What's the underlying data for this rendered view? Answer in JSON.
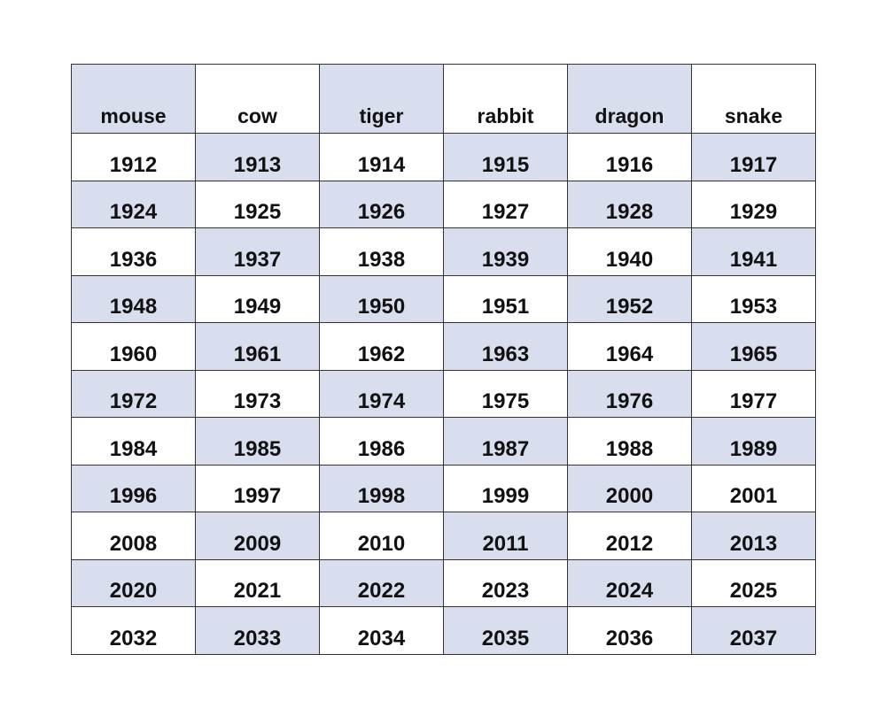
{
  "table": {
    "headers": [
      "mouse",
      "cow",
      "tiger",
      "rabbit",
      "dragon",
      "snake"
    ],
    "rows": [
      [
        "1912",
        "1913",
        "1914",
        "1915",
        "1916",
        "1917"
      ],
      [
        "1924",
        "1925",
        "1926",
        "1927",
        "1928",
        "1929"
      ],
      [
        "1936",
        "1937",
        "1938",
        "1939",
        "1940",
        "1941"
      ],
      [
        "1948",
        "1949",
        "1950",
        "1951",
        "1952",
        "1953"
      ],
      [
        "1960",
        "1961",
        "1962",
        "1963",
        "1964",
        "1965"
      ],
      [
        "1972",
        "1973",
        "1974",
        "1975",
        "1976",
        "1977"
      ],
      [
        "1984",
        "1985",
        "1986",
        "1987",
        "1988",
        "1989"
      ],
      [
        "1996",
        "1997",
        "1998",
        "1999",
        "2000",
        "2001"
      ],
      [
        "2008",
        "2009",
        "2010",
        "2011",
        "2012",
        "2013"
      ],
      [
        "2020",
        "2021",
        "2022",
        "2023",
        "2024",
        "2025"
      ],
      [
        "2032",
        "2033",
        "2034",
        "2035",
        "2036",
        "2037"
      ]
    ],
    "shade_color": "#d9deef"
  }
}
